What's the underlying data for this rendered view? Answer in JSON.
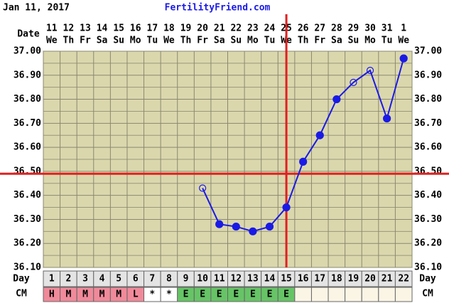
{
  "chart_data": {
    "type": "line",
    "date_text": "Jan 11, 2017",
    "title": "FertilityFriend.com",
    "date_header": "Date",
    "day_header": "Day",
    "cm_header": "CM",
    "categories": [
      "11",
      "12",
      "13",
      "14",
      "15",
      "16",
      "17",
      "18",
      "19",
      "20",
      "21",
      "22",
      "23",
      "24",
      "25",
      "26",
      "27",
      "28",
      "29",
      "30",
      "31",
      "1"
    ],
    "weekdays": [
      "We",
      "Th",
      "Fr",
      "Sa",
      "Su",
      "Mo",
      "Tu",
      "We",
      "Th",
      "Fr",
      "Sa",
      "Su",
      "Mo",
      "Tu",
      "We",
      "Th",
      "Fr",
      "Sa",
      "Su",
      "Mo",
      "Tu",
      "We"
    ],
    "days": [
      1,
      2,
      3,
      4,
      5,
      6,
      7,
      8,
      9,
      10,
      11,
      12,
      13,
      14,
      15,
      16,
      17,
      18,
      19,
      20,
      21,
      22
    ],
    "cm": [
      "H",
      "M",
      "M",
      "M",
      "M",
      "L",
      "*",
      "*",
      "E",
      "E",
      "E",
      "E",
      "E",
      "E",
      "E",
      null,
      null,
      null,
      null,
      null,
      null,
      null
    ],
    "cm_colors": {
      "H": "#f08a9a",
      "M": "#f08a9a",
      "L": "#f08a9a",
      "*": "#ffffff",
      "E": "#66c466"
    },
    "series": [
      {
        "name": "Temperature",
        "color": "#1a1ae6",
        "values": [
          null,
          null,
          null,
          null,
          null,
          null,
          null,
          null,
          null,
          36.43,
          36.28,
          36.27,
          36.25,
          36.27,
          36.35,
          36.54,
          36.65,
          36.8,
          36.87,
          36.92,
          36.72,
          36.97
        ],
        "open": [
          false,
          false,
          false,
          false,
          false,
          false,
          false,
          false,
          false,
          true,
          false,
          false,
          false,
          false,
          false,
          false,
          false,
          false,
          true,
          true,
          false,
          false
        ]
      }
    ],
    "coverline": 36.49,
    "ovulation_day": 15,
    "marker_line_color": "#e02020",
    "ylim": [
      36.1,
      37.0
    ],
    "yticks": [
      {
        "value": 36.1,
        "label": "36.10"
      },
      {
        "value": 36.2,
        "label": "36.20"
      },
      {
        "value": 36.3,
        "label": "36.30"
      },
      {
        "value": 36.4,
        "label": "36.40"
      },
      {
        "value": 36.5,
        "label": "36.50"
      },
      {
        "value": 36.6,
        "label": "36.60"
      },
      {
        "value": 36.7,
        "label": "36.70"
      },
      {
        "value": 36.8,
        "label": "36.80"
      },
      {
        "value": 36.9,
        "label": "36.90"
      },
      {
        "value": 37,
        "label": "37.00"
      }
    ],
    "grid": true
  }
}
